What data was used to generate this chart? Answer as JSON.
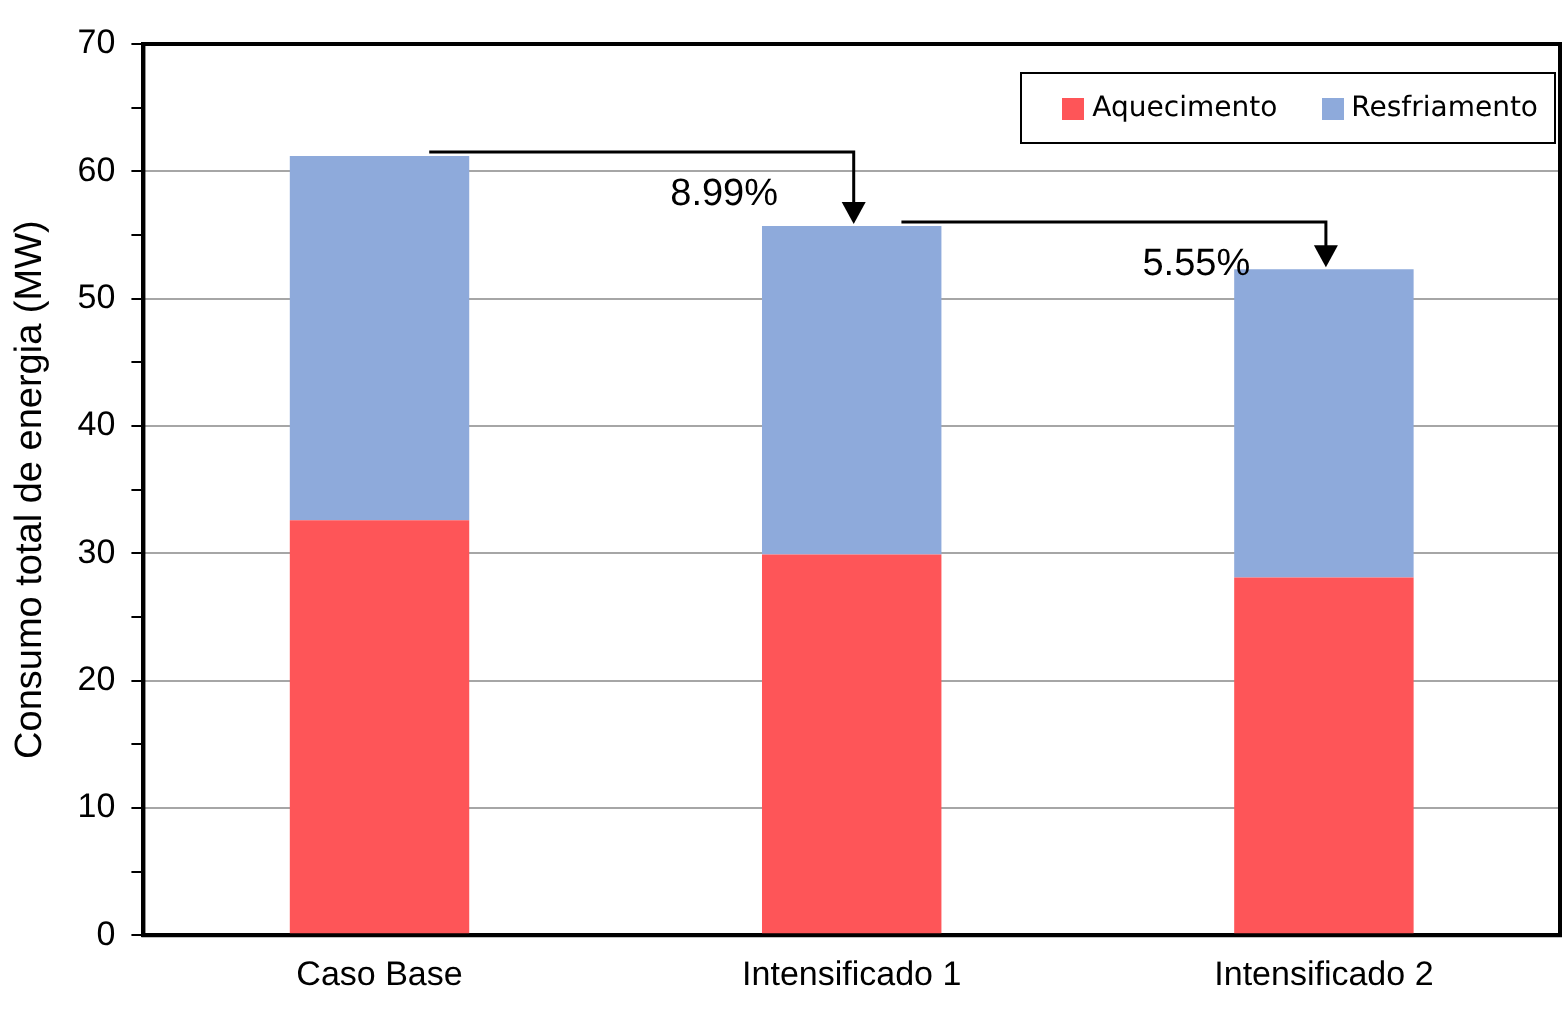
{
  "chart_data": {
    "type": "bar",
    "stacked": true,
    "ylabel": "Consumo total de energia (MW)",
    "categories": [
      "Caso Base",
      "Intensificado 1",
      "Intensificado 2"
    ],
    "series": [
      {
        "name": "Aquecimento",
        "color": "#fe5558",
        "values": [
          32.6,
          29.9,
          28.1
        ]
      },
      {
        "name": "Resfriamento",
        "color": "#8eaadb",
        "values": [
          28.6,
          25.8,
          24.2
        ]
      }
    ],
    "ylim": [
      0,
      70
    ],
    "yticks": [
      0,
      {
        "value": 5,
        "label": null
      },
      10,
      {
        "value": 15,
        "label": null
      },
      20,
      {
        "value": 25,
        "label": null
      },
      30,
      {
        "value": 35,
        "label": null
      },
      40,
      {
        "value": 45,
        "label": null
      },
      50,
      {
        "value": 55,
        "label": null
      },
      60,
      {
        "value": 65,
        "label": null
      },
      70
    ],
    "grid": "y",
    "legend": "top right",
    "annotations": [
      {
        "text": "8.99%",
        "x": "Intensificado 1",
        "y": 55.7
      },
      {
        "text": "5.55%",
        "x": "Intensificado 2",
        "y": 52.3
      }
    ]
  }
}
